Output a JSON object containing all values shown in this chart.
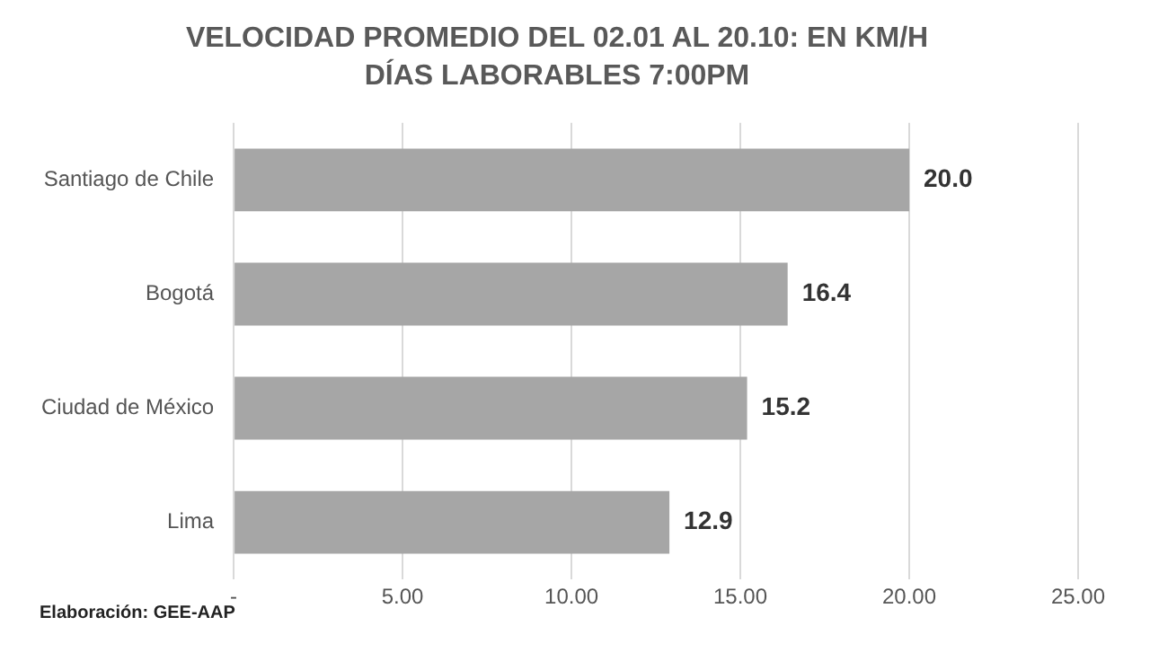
{
  "chart_data": {
    "type": "bar",
    "orientation": "horizontal",
    "title": "VELOCIDAD PROMEDIO DEL 02.01 AL 20.10: EN KM/H",
    "subtitle": "DÍAS LABORABLES 7:00PM",
    "categories": [
      "Santiago de Chile",
      "Bogotá",
      "Ciudad de México",
      "Lima"
    ],
    "values": [
      20.0,
      16.4,
      15.2,
      12.9
    ],
    "color": "#a6a6a6",
    "value_labels": [
      "20.0",
      "16.4",
      "15.2",
      "12.9"
    ],
    "xlim": [
      0,
      25
    ],
    "xticks": [
      {
        "value": 0,
        "label": "-"
      },
      {
        "value": 5,
        "label": "5.00"
      },
      {
        "value": 10,
        "label": "10.00"
      },
      {
        "value": 15,
        "label": "15.00"
      },
      {
        "value": 20,
        "label": "20.00"
      },
      {
        "value": 25,
        "label": "25.00"
      }
    ],
    "grid": "x",
    "legend": false,
    "annotations": [
      "Elaboración: GEE-AAP"
    ]
  }
}
